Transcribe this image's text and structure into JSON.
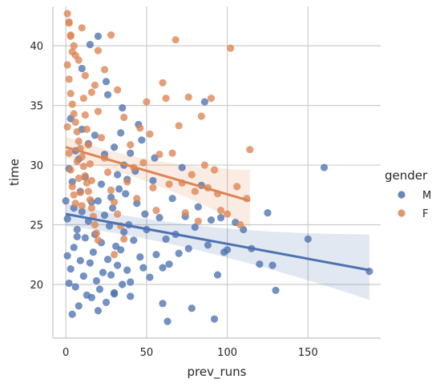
{
  "chart_data": {
    "type": "scatter",
    "title": "",
    "xlabel": "prev_runs",
    "ylabel": "time",
    "xlim": [
      -8,
      195
    ],
    "ylim": [
      15.5,
      43.3
    ],
    "x_ticks": [
      0,
      50,
      100,
      150
    ],
    "y_ticks": [
      20,
      25,
      30,
      35,
      40
    ],
    "grid": true,
    "legend": {
      "title": "gender",
      "placement": "right",
      "entries": [
        "M",
        "F"
      ]
    },
    "series": [
      {
        "name": "M",
        "color": "#4c72b0",
        "points": [
          [
            1,
            22.4
          ],
          [
            2,
            20.1
          ],
          [
            3,
            21.3
          ],
          [
            4,
            17.5
          ],
          [
            5,
            23.1
          ],
          [
            6,
            19.8
          ],
          [
            7,
            24.6
          ],
          [
            8,
            18.2
          ],
          [
            9,
            22.0
          ],
          [
            10,
            26.1
          ],
          [
            11,
            20.7
          ],
          [
            12,
            23.9
          ],
          [
            13,
            19.1
          ],
          [
            14,
            25.3
          ],
          [
            15,
            21.8
          ],
          [
            16,
            18.9
          ],
          [
            17,
            22.7
          ],
          [
            18,
            24.2
          ],
          [
            19,
            20.3
          ],
          [
            20,
            27.0
          ],
          [
            21,
            19.6
          ],
          [
            22,
            23.5
          ],
          [
            23,
            21.0
          ],
          [
            24,
            25.8
          ],
          [
            25,
            18.5
          ],
          [
            26,
            22.1
          ],
          [
            27,
            24.9
          ],
          [
            28,
            20.8
          ],
          [
            29,
            26.4
          ],
          [
            30,
            19.3
          ],
          [
            31,
            23.2
          ],
          [
            32,
            21.6
          ],
          [
            33,
            28.0
          ],
          [
            34,
            22.9
          ],
          [
            35,
            20.0
          ],
          [
            36,
            24.4
          ],
          [
            37,
            27.6
          ],
          [
            38,
            21.2
          ],
          [
            39,
            25.0
          ],
          [
            40,
            19.0
          ],
          [
            42,
            23.7
          ],
          [
            44,
            26.8
          ],
          [
            46,
            22.3
          ],
          [
            48,
            21.4
          ],
          [
            50,
            24.6
          ],
          [
            52,
            20.6
          ],
          [
            54,
            28.7
          ],
          [
            56,
            22.5
          ],
          [
            58,
            25.6
          ],
          [
            60,
            18.4
          ],
          [
            62,
            23.8
          ],
          [
            64,
            21.7
          ],
          [
            66,
            27.2
          ],
          [
            68,
            24.2
          ],
          [
            70,
            22.6
          ],
          [
            72,
            29.8
          ],
          [
            74,
            25.7
          ],
          [
            76,
            23.0
          ],
          [
            78,
            18.0
          ],
          [
            80,
            24.8
          ],
          [
            82,
            26.5
          ],
          [
            84,
            28.3
          ],
          [
            86,
            35.3
          ],
          [
            88,
            23.3
          ],
          [
            90,
            25.4
          ],
          [
            92,
            17.1
          ],
          [
            94,
            20.8
          ],
          [
            96,
            25.6
          ],
          [
            98,
            22.7
          ],
          [
            100,
            22.9
          ],
          [
            105,
            25.2
          ],
          [
            110,
            24.6
          ],
          [
            115,
            23.0
          ],
          [
            120,
            21.7
          ],
          [
            125,
            26.0
          ],
          [
            128,
            21.6
          ],
          [
            130,
            19.5
          ],
          [
            150,
            23.8
          ],
          [
            160,
            29.8
          ],
          [
            188,
            21.1
          ],
          [
            0,
            27.0
          ],
          [
            1,
            25.5
          ],
          [
            2,
            29.7
          ],
          [
            3,
            33.9
          ],
          [
            4,
            28.6
          ],
          [
            5,
            26.4
          ],
          [
            6,
            31.2
          ],
          [
            7,
            24.0
          ],
          [
            8,
            30.5
          ],
          [
            9,
            27.8
          ],
          [
            10,
            33.0
          ],
          [
            12,
            29.0
          ],
          [
            14,
            31.8
          ],
          [
            16,
            26.9
          ],
          [
            18,
            32.5
          ],
          [
            20,
            40.8
          ],
          [
            22,
            28.4
          ],
          [
            24,
            30.9
          ],
          [
            26,
            35.9
          ],
          [
            28,
            27.3
          ],
          [
            30,
            31.5
          ],
          [
            32,
            29.2
          ],
          [
            34,
            32.7
          ],
          [
            36,
            30.0
          ],
          [
            38,
            28.8
          ],
          [
            40,
            31.0
          ],
          [
            43,
            29.5
          ],
          [
            45,
            33.4
          ],
          [
            47,
            32.1
          ],
          [
            49,
            25.9
          ],
          [
            15,
            40.1
          ],
          [
            25,
            37.0
          ],
          [
            35,
            34.8
          ],
          [
            55,
            30.6
          ],
          [
            60,
            21.4
          ],
          [
            63,
            16.9
          ],
          [
            30,
            19.2
          ],
          [
            40,
            20.2
          ],
          [
            20,
            17.8
          ],
          [
            10,
            38.1
          ]
        ]
      },
      {
        "name": "F",
        "color": "#dd8452",
        "points": [
          [
            1,
            42.7
          ],
          [
            2,
            41.9
          ],
          [
            3,
            40.8
          ],
          [
            4,
            39.5
          ],
          [
            1,
            38.4
          ],
          [
            2,
            37.2
          ],
          [
            3,
            36.0
          ],
          [
            4,
            35.1
          ],
          [
            5,
            34.3
          ],
          [
            6,
            33.6
          ],
          [
            7,
            32.8
          ],
          [
            8,
            32.0
          ],
          [
            9,
            31.4
          ],
          [
            10,
            30.7
          ],
          [
            11,
            29.9
          ],
          [
            12,
            29.1
          ],
          [
            13,
            28.5
          ],
          [
            14,
            27.8
          ],
          [
            15,
            27.1
          ],
          [
            16,
            26.4
          ],
          [
            17,
            25.7
          ],
          [
            18,
            25.0
          ],
          [
            19,
            24.3
          ],
          [
            20,
            23.7
          ],
          [
            1,
            33.2
          ],
          [
            2,
            31.0
          ],
          [
            3,
            29.6
          ],
          [
            4,
            28.2
          ],
          [
            5,
            27.5
          ],
          [
            6,
            26.8
          ],
          [
            7,
            30.3
          ],
          [
            8,
            28.9
          ],
          [
            9,
            27.7
          ],
          [
            10,
            26.6
          ],
          [
            11,
            35.6
          ],
          [
            12,
            34.2
          ],
          [
            13,
            33.0
          ],
          [
            14,
            31.7
          ],
          [
            15,
            30.1
          ],
          [
            16,
            28.7
          ],
          [
            18,
            36.7
          ],
          [
            20,
            34.5
          ],
          [
            22,
            32.3
          ],
          [
            24,
            30.6
          ],
          [
            26,
            29.4
          ],
          [
            28,
            27.9
          ],
          [
            30,
            26.9
          ],
          [
            32,
            25.9
          ],
          [
            34,
            24.9
          ],
          [
            36,
            23.8
          ],
          [
            38,
            28.6
          ],
          [
            40,
            31.7
          ],
          [
            42,
            29.8
          ],
          [
            44,
            27.2
          ],
          [
            46,
            33.1
          ],
          [
            48,
            30.2
          ],
          [
            50,
            35.3
          ],
          [
            52,
            32.6
          ],
          [
            54,
            28.1
          ],
          [
            56,
            26.2
          ],
          [
            58,
            30.9
          ],
          [
            60,
            36.9
          ],
          [
            62,
            35.6
          ],
          [
            64,
            28.4
          ],
          [
            66,
            31.0
          ],
          [
            68,
            40.5
          ],
          [
            70,
            33.3
          ],
          [
            72,
            28.5
          ],
          [
            74,
            26.0
          ],
          [
            76,
            35.7
          ],
          [
            78,
            29.2
          ],
          [
            80,
            27.8
          ],
          [
            82,
            25.3
          ],
          [
            84,
            34.1
          ],
          [
            86,
            30.0
          ],
          [
            88,
            28.1
          ],
          [
            90,
            35.6
          ],
          [
            92,
            29.6
          ],
          [
            94,
            27.6
          ],
          [
            96,
            26.2
          ],
          [
            100,
            25.9
          ],
          [
            102,
            39.8
          ],
          [
            106,
            28.2
          ],
          [
            108,
            25.0
          ],
          [
            112,
            27.2
          ],
          [
            114,
            31.3
          ],
          [
            5,
            40.0
          ],
          [
            8,
            38.8
          ],
          [
            12,
            37.5
          ],
          [
            16,
            36.1
          ],
          [
            20,
            39.6
          ],
          [
            24,
            38.0
          ],
          [
            28,
            40.9
          ],
          [
            32,
            36.3
          ],
          [
            36,
            34.0
          ],
          [
            2,
            42.0
          ],
          [
            3,
            40.9
          ],
          [
            6,
            39.2
          ],
          [
            10,
            41.5
          ],
          [
            30,
            22.5
          ]
        ]
      }
    ],
    "regression": [
      {
        "series": "M",
        "x": [
          0,
          188
        ],
        "y": [
          25.9,
          21.2
        ],
        "ci_lower_at_max": 18.7,
        "ci_upper_at_max": 24.2,
        "ci_lower_at_min": 24.9,
        "ci_upper_at_min": 26.8
      },
      {
        "series": "F",
        "x": [
          0,
          114
        ],
        "y": [
          31.5,
          27.0
        ],
        "ci_lower_at_max": 24.8,
        "ci_upper_at_max": 29.6,
        "ci_lower_at_min": 30.6,
        "ci_upper_at_min": 32.4
      }
    ]
  }
}
